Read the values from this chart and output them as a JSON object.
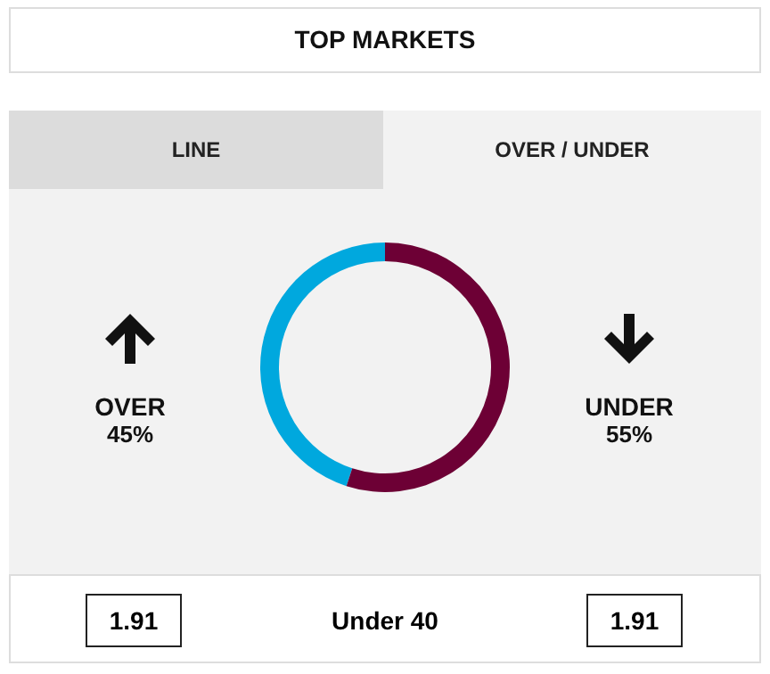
{
  "chart_data": {
    "type": "donut",
    "title": "TOP MARKETS",
    "categories": [
      "OVER",
      "UNDER"
    ],
    "values": [
      45,
      55
    ],
    "colors": [
      "#00a8de",
      "#6d0035"
    ],
    "value_labels": [
      "45%",
      "55%"
    ],
    "legend": false,
    "annotations": [
      "LINE",
      "OVER / UNDER",
      "1.91",
      "Under 40",
      "1.91"
    ]
  }
}
